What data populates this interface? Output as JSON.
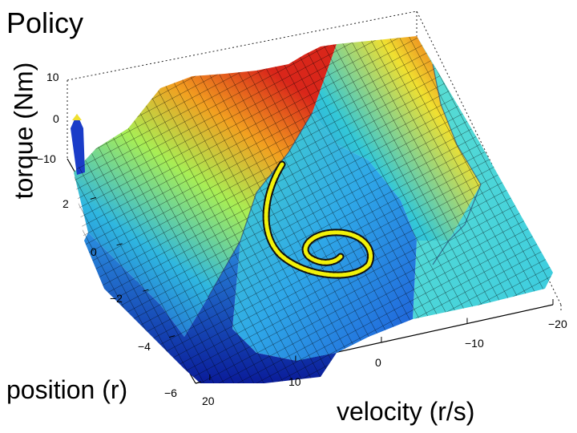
{
  "chart_data": {
    "type": "surface",
    "title": "Policy",
    "xlabel": "velocity (r/s)",
    "ylabel": "position (r)",
    "zlabel": "torque (Nm)",
    "xlim": [
      -20,
      20
    ],
    "ylim": [
      -6,
      3
    ],
    "zlim": [
      -10,
      10
    ],
    "x_ticks": [
      "20",
      "10",
      "0",
      "−10",
      "−20"
    ],
    "y_ticks": [
      "2",
      "0",
      "−2",
      "−4",
      "−6"
    ],
    "z_ticks": [
      "10",
      "0",
      "−10"
    ],
    "colormap": "jet",
    "trajectory_color": "#f2f20a",
    "trajectory": [
      {
        "velocity": 2,
        "position": 1.8
      },
      {
        "velocity": 4,
        "position": 0.5
      },
      {
        "velocity": 3,
        "position": -1.0
      },
      {
        "velocity": -1,
        "position": -2.0
      },
      {
        "velocity": -5,
        "position": -1.8
      },
      {
        "velocity": -7,
        "position": -0.8
      },
      {
        "velocity": -6,
        "position": 0.0
      },
      {
        "velocity": -3,
        "position": 0.3
      },
      {
        "velocity": -1,
        "position": -0.5
      }
    ]
  }
}
